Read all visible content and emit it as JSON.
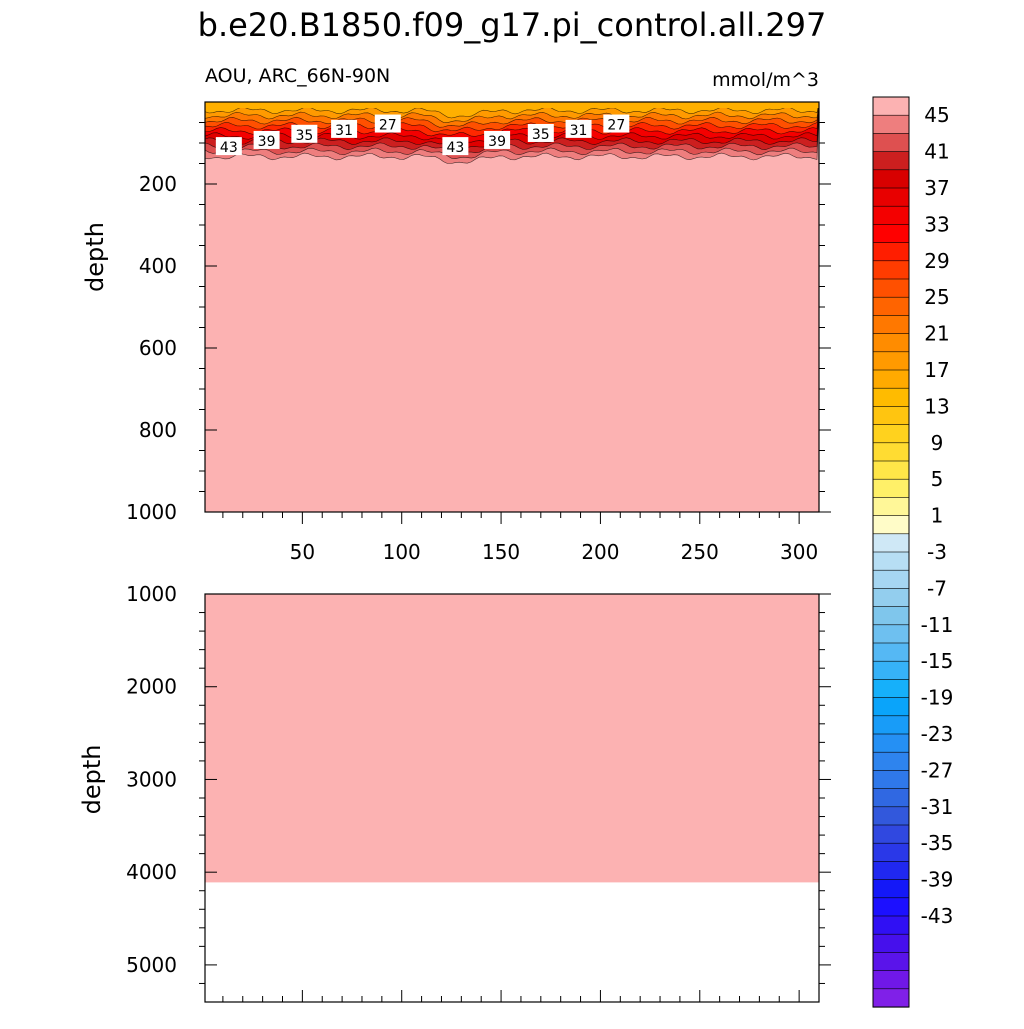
{
  "chart_data": {
    "type": "heatmap",
    "title": "b.e20.B1850.f09_g17.pi_control.all.297",
    "left_label": "AOU, ARC_66N-90N",
    "right_label": "mmol/m^3",
    "x": {
      "range": [
        1,
        310
      ],
      "ticks": [
        50,
        100,
        150,
        200,
        250,
        300
      ]
    },
    "panels": [
      {
        "ylabel": "depth",
        "ylim": [
          0,
          1000
        ],
        "yticks": [
          200,
          400,
          600,
          800,
          1000
        ],
        "fill_value": 45,
        "contour_labels": [
          {
            "x": 13,
            "y": 110,
            "value": "43"
          },
          {
            "x": 32,
            "y": 95,
            "value": "39"
          },
          {
            "x": 51,
            "y": 80,
            "value": "35"
          },
          {
            "x": 71,
            "y": 68,
            "value": "31"
          },
          {
            "x": 93,
            "y": 55,
            "value": "27"
          },
          {
            "x": 127,
            "y": 110,
            "value": "43"
          },
          {
            "x": 148,
            "y": 95,
            "value": "39"
          },
          {
            "x": 170,
            "y": 78,
            "value": "35"
          },
          {
            "x": 189,
            "y": 68,
            "value": "31"
          },
          {
            "x": 208,
            "y": 55,
            "value": "27"
          }
        ]
      },
      {
        "ylabel": "depth",
        "ylim": [
          1000,
          5400
        ],
        "yticks": [
          1000,
          2000,
          3000,
          4000,
          5000
        ],
        "fill_value": 45,
        "seafloor_depth": 4110
      }
    ],
    "colorbar": {
      "labels": [
        "45",
        "41",
        "37",
        "33",
        "29",
        "25",
        "21",
        "17",
        "13",
        "9",
        "5",
        "1",
        "-3",
        "-7",
        "-11",
        "-15",
        "-19",
        "-23",
        "-27",
        "-31",
        "-35",
        "-39",
        "-43"
      ],
      "colors": [
        "#fcb2b2",
        "#ee7e7e",
        "#de5050",
        "#cc1f1f",
        "#d80000",
        "#e80000",
        "#f40000",
        "#ff0000",
        "#ff1e00",
        "#ff3c00",
        "#ff5000",
        "#ff6400",
        "#ff7800",
        "#ff8c00",
        "#ff9a00",
        "#ffaa00",
        "#ffbb00",
        "#ffc510",
        "#ffd21e",
        "#ffdc32",
        "#ffe648",
        "#fff068",
        "#fff798",
        "#fffcc8",
        "#cfe8f6",
        "#b7def4",
        "#a6d6f2",
        "#93ceee",
        "#7fc6ec",
        "#6ec0f0",
        "#55b8f4",
        "#36b2f8",
        "#16b0fa",
        "#0aa4fa",
        "#189cf8",
        "#2590f4",
        "#2e84ee",
        "#2f78ea",
        "#3068e2",
        "#3258dc",
        "#3048e0",
        "#2a38e8",
        "#2028f0",
        "#1418f8",
        "#1c10ff",
        "#3010f4",
        "#4610ec",
        "#5a14ea",
        "#7018e8",
        "#8020e8"
      ]
    }
  }
}
